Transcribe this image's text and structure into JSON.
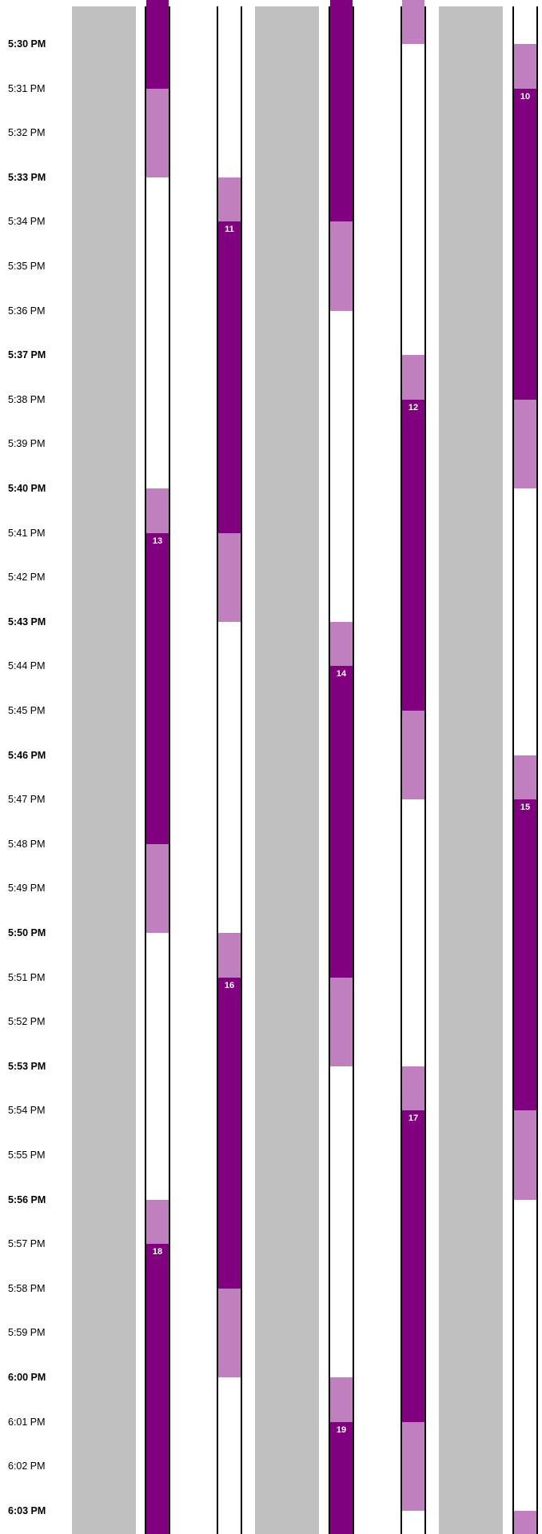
{
  "colors": {
    "gray": "#c0c0c0",
    "dark": "#800080",
    "light": "#c080c0",
    "line": "#000000",
    "background": "#ffffff"
  },
  "timeline": {
    "start_time": "5:30 PM",
    "times": [
      {
        "label": "5:30 PM",
        "major": true
      },
      {
        "label": "5:31 PM",
        "major": false
      },
      {
        "label": "5:32 PM",
        "major": false
      },
      {
        "label": "5:33 PM",
        "major": true
      },
      {
        "label": "5:34 PM",
        "major": false
      },
      {
        "label": "5:35 PM",
        "major": false
      },
      {
        "label": "5:36 PM",
        "major": false
      },
      {
        "label": "5:37 PM",
        "major": true
      },
      {
        "label": "5:38 PM",
        "major": false
      },
      {
        "label": "5:39 PM",
        "major": false
      },
      {
        "label": "5:40 PM",
        "major": true
      },
      {
        "label": "5:41 PM",
        "major": false
      },
      {
        "label": "5:42 PM",
        "major": false
      },
      {
        "label": "5:43 PM",
        "major": true
      },
      {
        "label": "5:44 PM",
        "major": false
      },
      {
        "label": "5:45 PM",
        "major": false
      },
      {
        "label": "5:46 PM",
        "major": true
      },
      {
        "label": "5:47 PM",
        "major": false
      },
      {
        "label": "5:48 PM",
        "major": false
      },
      {
        "label": "5:49 PM",
        "major": false
      },
      {
        "label": "5:50 PM",
        "major": true
      },
      {
        "label": "5:51 PM",
        "major": false
      },
      {
        "label": "5:52 PM",
        "major": false
      },
      {
        "label": "5:53 PM",
        "major": true
      },
      {
        "label": "5:54 PM",
        "major": false
      },
      {
        "label": "5:55 PM",
        "major": false
      },
      {
        "label": "5:56 PM",
        "major": true
      },
      {
        "label": "5:57 PM",
        "major": false
      },
      {
        "label": "5:58 PM",
        "major": false
      },
      {
        "label": "5:59 PM",
        "major": false
      },
      {
        "label": "6:00 PM",
        "major": true
      },
      {
        "label": "6:01 PM",
        "major": false
      },
      {
        "label": "6:02 PM",
        "major": false
      },
      {
        "label": "6:03 PM",
        "major": true
      }
    ]
  },
  "lanes": [
    {
      "kind": "gray"
    },
    {
      "kind": "track",
      "blocks": [
        {
          "shade": "dark",
          "start": "5:29 PM",
          "end": "5:31 PM",
          "label": ""
        },
        {
          "shade": "light",
          "start": "5:31 PM",
          "end": "5:33 PM",
          "label": ""
        },
        {
          "shade": "light",
          "start": "5:40 PM",
          "end": "5:41 PM",
          "label": ""
        },
        {
          "shade": "dark",
          "start": "5:41 PM",
          "end": "5:48 PM",
          "label": "13"
        },
        {
          "shade": "light",
          "start": "5:48 PM",
          "end": "5:50 PM",
          "label": ""
        },
        {
          "shade": "light",
          "start": "5:56 PM",
          "end": "5:57 PM",
          "label": ""
        },
        {
          "shade": "dark",
          "start": "5:57 PM",
          "end": "6:04 PM",
          "label": "18"
        }
      ]
    },
    {
      "kind": "track",
      "blocks": [
        {
          "shade": "light",
          "start": "5:33 PM",
          "end": "5:34 PM",
          "label": ""
        },
        {
          "shade": "dark",
          "start": "5:34 PM",
          "end": "5:41 PM",
          "label": "11"
        },
        {
          "shade": "light",
          "start": "5:41 PM",
          "end": "5:43 PM",
          "label": ""
        },
        {
          "shade": "light",
          "start": "5:50 PM",
          "end": "5:51 PM",
          "label": ""
        },
        {
          "shade": "dark",
          "start": "5:51 PM",
          "end": "5:58 PM",
          "label": "16"
        },
        {
          "shade": "light",
          "start": "5:58 PM",
          "end": "6:00 PM",
          "label": ""
        }
      ]
    },
    {
      "kind": "gray"
    },
    {
      "kind": "track",
      "blocks": [
        {
          "shade": "dark",
          "start": "5:29 PM",
          "end": "5:34 PM",
          "label": ""
        },
        {
          "shade": "light",
          "start": "5:34 PM",
          "end": "5:36 PM",
          "label": ""
        },
        {
          "shade": "light",
          "start": "5:43 PM",
          "end": "5:44 PM",
          "label": ""
        },
        {
          "shade": "dark",
          "start": "5:44 PM",
          "end": "5:51 PM",
          "label": "14"
        },
        {
          "shade": "light",
          "start": "5:51 PM",
          "end": "5:53 PM",
          "label": ""
        },
        {
          "shade": "light",
          "start": "6:00 PM",
          "end": "6:01 PM",
          "label": ""
        },
        {
          "shade": "dark",
          "start": "6:01 PM",
          "end": "6:04 PM",
          "label": "19"
        }
      ]
    },
    {
      "kind": "track",
      "blocks": [
        {
          "shade": "light",
          "start": "5:29 PM",
          "end": "5:30 PM",
          "label": ""
        },
        {
          "shade": "light",
          "start": "5:37 PM",
          "end": "5:38 PM",
          "label": ""
        },
        {
          "shade": "dark",
          "start": "5:38 PM",
          "end": "5:45 PM",
          "label": "12"
        },
        {
          "shade": "light",
          "start": "5:45 PM",
          "end": "5:47 PM",
          "label": ""
        },
        {
          "shade": "light",
          "start": "5:53 PM",
          "end": "5:54 PM",
          "label": ""
        },
        {
          "shade": "dark",
          "start": "5:54 PM",
          "end": "6:01 PM",
          "label": "17"
        },
        {
          "shade": "light",
          "start": "6:01 PM",
          "end": "6:03 PM",
          "label": ""
        }
      ]
    },
    {
      "kind": "gray"
    },
    {
      "kind": "track",
      "blocks": [
        {
          "shade": "light",
          "start": "5:30 PM",
          "end": "5:31 PM",
          "label": ""
        },
        {
          "shade": "dark",
          "start": "5:31 PM",
          "end": "5:38 PM",
          "label": "10"
        },
        {
          "shade": "light",
          "start": "5:38 PM",
          "end": "5:40 PM",
          "label": ""
        },
        {
          "shade": "light",
          "start": "5:46 PM",
          "end": "5:47 PM",
          "label": ""
        },
        {
          "shade": "dark",
          "start": "5:47 PM",
          "end": "5:54 PM",
          "label": "15"
        },
        {
          "shade": "light",
          "start": "5:54 PM",
          "end": "5:56 PM",
          "label": ""
        },
        {
          "shade": "light",
          "start": "6:03 PM",
          "end": "6:04 PM",
          "label": ""
        }
      ]
    }
  ]
}
